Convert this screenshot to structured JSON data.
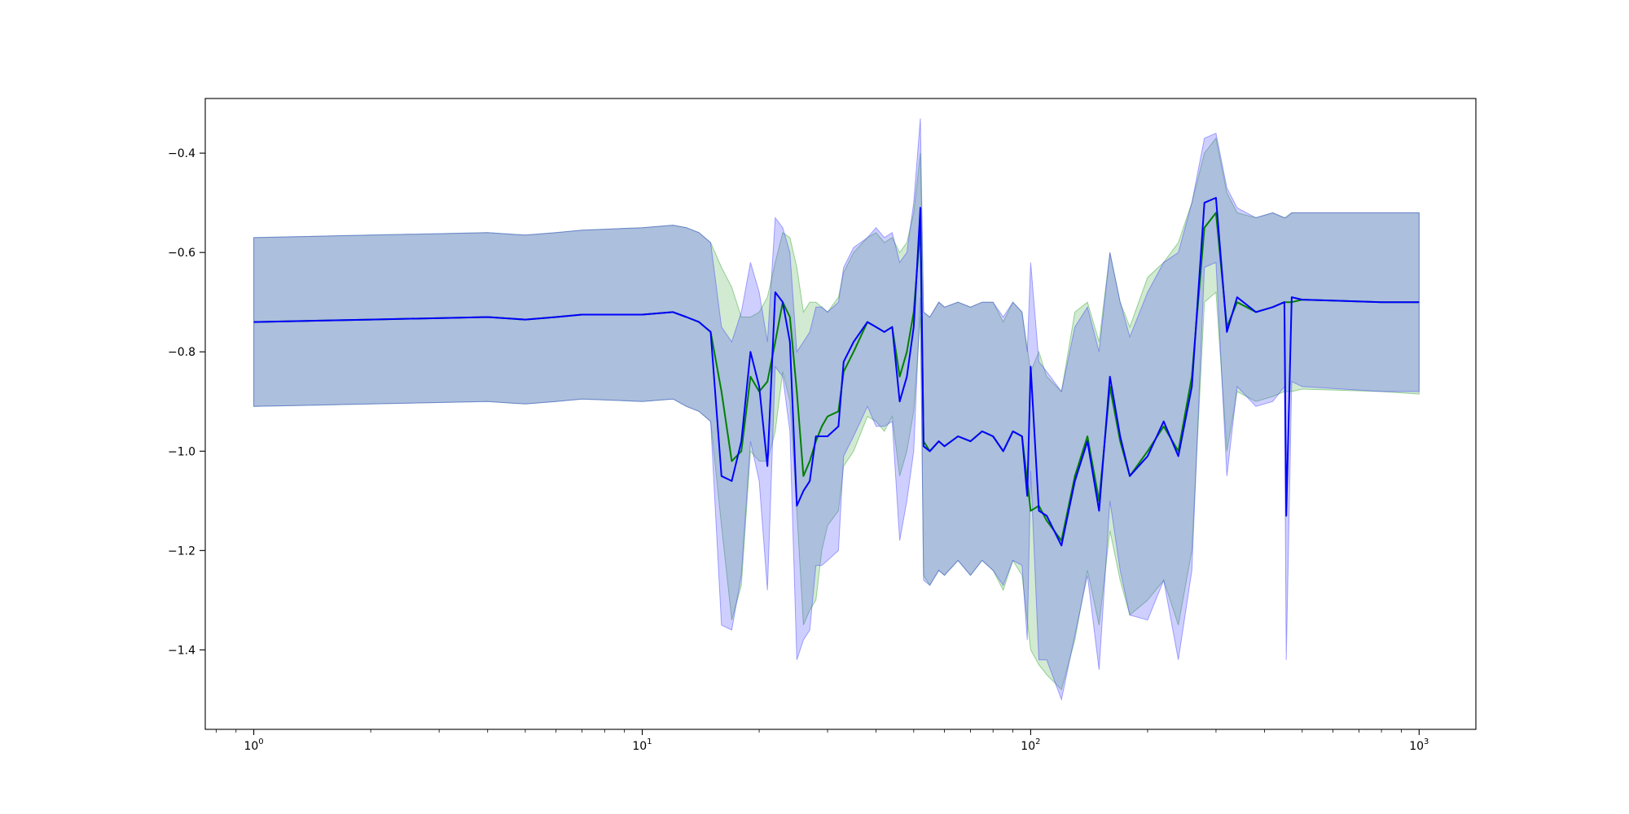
{
  "chart_data": {
    "type": "line",
    "title": "",
    "xlabel": "",
    "ylabel": "",
    "xscale": "log",
    "xlim": [
      0.75,
      1400
    ],
    "ylim": [
      -1.56,
      -0.29
    ],
    "grid": false,
    "legend": "none",
    "x_ticks": [
      {
        "value": 1,
        "base": "10",
        "exp": "0"
      },
      {
        "value": 10,
        "base": "10",
        "exp": "1"
      },
      {
        "value": 100,
        "base": "10",
        "exp": "2"
      },
      {
        "value": 1000,
        "base": "10",
        "exp": "3"
      }
    ],
    "y_ticks": [
      {
        "value": -0.4,
        "label": "−0.4"
      },
      {
        "value": -0.6,
        "label": "−0.6"
      },
      {
        "value": -0.8,
        "label": "−0.8"
      },
      {
        "value": -1.0,
        "label": "−1.0"
      },
      {
        "value": -1.2,
        "label": "−1.2"
      },
      {
        "value": -1.4,
        "label": "−1.4"
      }
    ],
    "series": [
      {
        "color": "#008000",
        "band_color": "#2ca02c",
        "band_opacity": 0.22,
        "x": [
          1,
          2,
          4,
          5,
          6,
          7,
          10,
          12,
          13,
          14,
          15,
          16,
          17,
          18,
          19,
          20,
          21,
          22,
          23,
          24,
          25,
          26,
          27,
          28,
          29,
          30,
          32,
          33,
          35,
          38,
          40,
          42,
          44,
          46,
          48,
          50,
          52,
          53,
          55,
          58,
          60,
          65,
          70,
          75,
          80,
          85,
          90,
          95,
          100,
          105,
          110,
          120,
          130,
          140,
          150,
          160,
          170,
          180,
          200,
          220,
          240,
          260,
          280,
          300,
          320,
          340,
          380,
          420,
          450,
          470,
          500,
          800,
          1000
        ],
        "y": [
          -0.74,
          -0.735,
          -0.73,
          -0.735,
          -0.73,
          -0.725,
          -0.725,
          -0.72,
          -0.73,
          -0.74,
          -0.76,
          -0.88,
          -1.02,
          -1.0,
          -0.85,
          -0.88,
          -0.86,
          -0.78,
          -0.7,
          -0.73,
          -0.88,
          -1.05,
          -1.02,
          -0.98,
          -0.95,
          -0.93,
          -0.92,
          -0.84,
          -0.8,
          -0.74,
          -0.75,
          -0.76,
          -0.75,
          -0.85,
          -0.8,
          -0.72,
          -0.55,
          -0.98,
          -1.0,
          -0.98,
          -0.99,
          -0.97,
          -0.98,
          -0.96,
          -0.97,
          -1.0,
          -0.96,
          -0.97,
          -1.12,
          -1.11,
          -1.14,
          -1.18,
          -1.05,
          -0.97,
          -1.1,
          -0.87,
          -0.98,
          -1.05,
          -1.0,
          -0.95,
          -1.0,
          -0.85,
          -0.55,
          -0.52,
          -0.75,
          -0.7,
          -0.72,
          -0.71,
          -0.7,
          -0.7,
          -0.695,
          -0.7,
          -0.7
        ],
        "upper": [
          -0.57,
          -0.565,
          -0.56,
          -0.565,
          -0.56,
          -0.555,
          -0.55,
          -0.545,
          -0.55,
          -0.56,
          -0.58,
          -0.63,
          -0.67,
          -0.73,
          -0.73,
          -0.72,
          -0.69,
          -0.62,
          -0.56,
          -0.57,
          -0.63,
          -0.72,
          -0.7,
          -0.7,
          -0.71,
          -0.72,
          -0.69,
          -0.64,
          -0.6,
          -0.57,
          -0.56,
          -0.58,
          -0.57,
          -0.6,
          -0.58,
          -0.52,
          -0.4,
          -0.72,
          -0.73,
          -0.7,
          -0.71,
          -0.7,
          -0.71,
          -0.7,
          -0.7,
          -0.74,
          -0.7,
          -0.72,
          -0.84,
          -0.8,
          -0.85,
          -0.88,
          -0.72,
          -0.7,
          -0.78,
          -0.6,
          -0.7,
          -0.75,
          -0.65,
          -0.62,
          -0.58,
          -0.5,
          -0.4,
          -0.37,
          -0.48,
          -0.52,
          -0.53,
          -0.52,
          -0.53,
          -0.52,
          -0.52,
          -0.52,
          -0.52
        ],
        "lower": [
          -0.91,
          -0.905,
          -0.9,
          -0.905,
          -0.9,
          -0.895,
          -0.9,
          -0.895,
          -0.91,
          -0.92,
          -0.94,
          -1.15,
          -1.34,
          -1.27,
          -1.0,
          -1.02,
          -1.02,
          -0.96,
          -0.84,
          -0.9,
          -1.12,
          -1.35,
          -1.32,
          -1.3,
          -1.2,
          -1.15,
          -1.12,
          -1.03,
          -1.0,
          -0.93,
          -0.94,
          -0.96,
          -0.93,
          -1.05,
          -1.0,
          -0.92,
          -0.73,
          -1.25,
          -1.27,
          -1.24,
          -1.25,
          -1.22,
          -1.25,
          -1.22,
          -1.24,
          -1.28,
          -1.22,
          -1.25,
          -1.4,
          -1.43,
          -1.45,
          -1.48,
          -1.38,
          -1.24,
          -1.35,
          -1.16,
          -1.26,
          -1.33,
          -1.3,
          -1.26,
          -1.35,
          -1.2,
          -0.7,
          -0.68,
          -1.0,
          -0.88,
          -0.9,
          -0.89,
          -0.88,
          -0.88,
          -0.875,
          -0.88,
          -0.885
        ]
      },
      {
        "color": "#0000ff",
        "band_color": "#4040ff",
        "band_opacity": 0.25,
        "x": [
          1,
          2,
          4,
          5,
          6,
          7,
          10,
          12,
          13,
          14,
          15,
          16,
          17,
          18,
          19,
          20,
          21,
          22,
          23,
          24,
          25,
          26,
          27,
          28,
          29,
          30,
          32,
          33,
          35,
          38,
          40,
          42,
          44,
          46,
          48,
          50,
          52,
          53,
          55,
          58,
          60,
          65,
          70,
          75,
          80,
          85,
          90,
          95,
          98,
          100,
          105,
          110,
          120,
          130,
          140,
          150,
          160,
          170,
          180,
          200,
          220,
          240,
          260,
          280,
          300,
          320,
          340,
          380,
          420,
          450,
          455,
          470,
          500,
          800,
          1000
        ],
        "y": [
          -0.74,
          -0.735,
          -0.73,
          -0.735,
          -0.73,
          -0.725,
          -0.725,
          -0.72,
          -0.73,
          -0.74,
          -0.76,
          -1.05,
          -1.06,
          -0.98,
          -0.8,
          -0.87,
          -1.03,
          -0.68,
          -0.7,
          -0.78,
          -1.11,
          -1.08,
          -1.06,
          -0.97,
          -0.97,
          -0.97,
          -0.95,
          -0.82,
          -0.78,
          -0.74,
          -0.75,
          -0.76,
          -0.75,
          -0.9,
          -0.85,
          -0.75,
          -0.51,
          -0.99,
          -1.0,
          -0.98,
          -0.99,
          -0.97,
          -0.98,
          -0.96,
          -0.97,
          -1.0,
          -0.96,
          -0.97,
          -1.09,
          -0.83,
          -1.12,
          -1.13,
          -1.19,
          -1.06,
          -0.98,
          -1.12,
          -0.85,
          -0.97,
          -1.05,
          -1.01,
          -0.94,
          -1.01,
          -0.87,
          -0.5,
          -0.49,
          -0.76,
          -0.69,
          -0.72,
          -0.71,
          -0.7,
          -1.13,
          -0.69,
          -0.695,
          -0.7,
          -0.7
        ],
        "upper": [
          -0.57,
          -0.565,
          -0.56,
          -0.565,
          -0.56,
          -0.555,
          -0.55,
          -0.545,
          -0.55,
          -0.56,
          -0.58,
          -0.75,
          -0.78,
          -0.72,
          -0.62,
          -0.68,
          -0.78,
          -0.53,
          -0.55,
          -0.6,
          -0.8,
          -0.78,
          -0.76,
          -0.71,
          -0.71,
          -0.72,
          -0.7,
          -0.63,
          -0.59,
          -0.57,
          -0.55,
          -0.57,
          -0.56,
          -0.62,
          -0.6,
          -0.5,
          -0.33,
          -0.72,
          -0.73,
          -0.7,
          -0.71,
          -0.7,
          -0.71,
          -0.7,
          -0.7,
          -0.73,
          -0.7,
          -0.72,
          -0.8,
          -0.62,
          -0.82,
          -0.84,
          -0.88,
          -0.75,
          -0.71,
          -0.8,
          -0.6,
          -0.7,
          -0.77,
          -0.68,
          -0.62,
          -0.6,
          -0.5,
          -0.37,
          -0.36,
          -0.47,
          -0.51,
          -0.53,
          -0.52,
          -0.53,
          -0.53,
          -0.52,
          -0.52,
          -0.52,
          -0.52
        ],
        "lower": [
          -0.91,
          -0.905,
          -0.9,
          -0.905,
          -0.9,
          -0.895,
          -0.9,
          -0.895,
          -0.91,
          -0.92,
          -0.94,
          -1.35,
          -1.36,
          -1.25,
          -0.98,
          -1.06,
          -1.28,
          -0.83,
          -0.85,
          -0.96,
          -1.42,
          -1.38,
          -1.36,
          -1.23,
          -1.23,
          -1.22,
          -1.2,
          -1.01,
          -0.97,
          -0.91,
          -0.95,
          -0.95,
          -0.94,
          -1.18,
          -1.1,
          -1.0,
          -0.69,
          -1.26,
          -1.27,
          -1.24,
          -1.25,
          -1.22,
          -1.25,
          -1.22,
          -1.24,
          -1.27,
          -1.22,
          -1.23,
          -1.38,
          -1.04,
          -1.42,
          -1.42,
          -1.5,
          -1.37,
          -1.25,
          -1.44,
          -1.1,
          -1.24,
          -1.33,
          -1.34,
          -1.26,
          -1.42,
          -1.24,
          -0.63,
          -0.62,
          -1.05,
          -0.87,
          -0.91,
          -0.9,
          -0.87,
          -1.42,
          -0.86,
          -0.87,
          -0.88,
          -0.88
        ]
      }
    ]
  }
}
